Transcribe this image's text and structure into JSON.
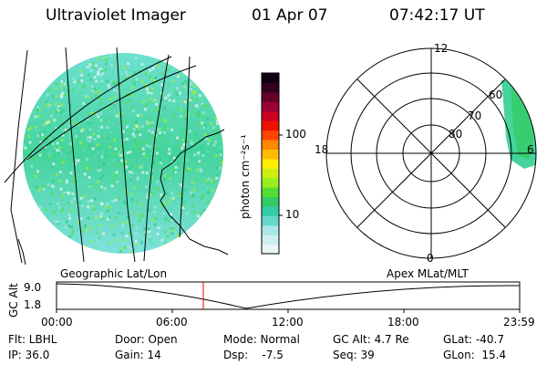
{
  "header": {
    "title": "Ultraviolet Imager",
    "date": "01 Apr 07",
    "time": "07:42:17 UT"
  },
  "colorbar": {
    "unit_label": "photon cm⁻²s⁻¹",
    "ticks": [
      "100",
      "10"
    ],
    "colors": [
      "#e8f6f6",
      "#cfeeee",
      "#aae6e6",
      "#66d8cc",
      "#33ccaa",
      "#33cc66",
      "#55dd33",
      "#99ee22",
      "#ccee11",
      "#ffee00",
      "#ffbb00",
      "#ff8800",
      "#ff4400",
      "#ee1100",
      "#cc0022",
      "#990033",
      "#66002a",
      "#330022",
      "#110011"
    ]
  },
  "left_map": {
    "label": "Geographic Lat/Lon"
  },
  "right_polar": {
    "label": "Apex MLat/MLT",
    "mlt_labels": {
      "top": "12",
      "left": "18",
      "right": "6",
      "bottom": "0"
    },
    "lat_labels": [
      "60",
      "70",
      "80"
    ]
  },
  "alt_plot": {
    "ylabel": "GC Alt",
    "yticks": [
      "9.0",
      "1.8"
    ],
    "xticks": [
      "00:00",
      "06:00",
      "12:00",
      "18:00",
      "23:59"
    ],
    "marker_time": "07:42"
  },
  "footer": {
    "flt": "Flt: LBHL",
    "ip": "IP: 36.0",
    "door": "Door: Open",
    "gain": "Gain: 14",
    "mode": "Mode: Normal",
    "dsp": "Dsp:    -7.5",
    "gcalt": "GC Alt: 4.7 Re",
    "seq": "Seq: 39",
    "glat": "GLat: -40.7",
    "glon": "GLon:  15.4"
  }
}
